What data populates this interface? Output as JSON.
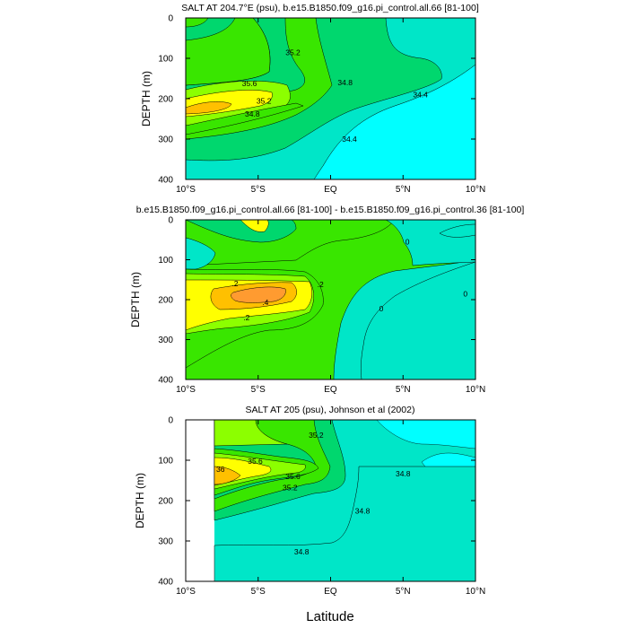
{
  "figure": {
    "xlabel": "Latitude",
    "contour_colors": [
      "#00ffff",
      "#00e6c8",
      "#00d76e",
      "#39e600",
      "#8cff00",
      "#ffff00",
      "#ffc000",
      "#ff9b30"
    ]
  },
  "chart_data": [
    {
      "type": "contour",
      "title": "SALT AT 204.7°E (psu), b.e15.B1850.f09_g16.pi_control.all.66 [81-100]",
      "ylabel": "DEPTH (m)",
      "xlabel": "",
      "xlim": [
        -10,
        10
      ],
      "ylim": [
        400,
        0
      ],
      "x_ticks": [
        -10,
        -5,
        0,
        5,
        10
      ],
      "x_tick_labels": [
        "10°S",
        "5°S",
        "EQ",
        "5°N",
        "10°N"
      ],
      "y_ticks": [
        0,
        100,
        200,
        300,
        400
      ],
      "y_tick_labels": [
        "0",
        "100",
        "200",
        "300",
        "400"
      ],
      "contour_levels": [
        34.4,
        34.6,
        34.8,
        35.0,
        35.2,
        35.4,
        35.6,
        35.8
      ],
      "contour_labels": [
        {
          "text": "35.2",
          "x": -2.6,
          "y": 85
        },
        {
          "text": "35.6",
          "x": -5.6,
          "y": 162
        },
        {
          "text": "34.8",
          "x": 1.0,
          "y": 160
        },
        {
          "text": "34.4",
          "x": 6.2,
          "y": 190
        },
        {
          "text": "35.2",
          "x": -4.6,
          "y": 205
        },
        {
          "text": "34.8",
          "x": -5.4,
          "y": 238
        },
        {
          "text": "34.4",
          "x": 1.3,
          "y": 300
        }
      ]
    },
    {
      "type": "contour",
      "title": "b.e15.B1850.f09_g16.pi_control.all.66 [81-100] - b.e15.B1850.f09_g16.pi_control.36 [81-100]",
      "ylabel": "DEPTH (m)",
      "xlabel": "",
      "xlim": [
        -10,
        10
      ],
      "ylim": [
        400,
        0
      ],
      "x_ticks": [
        -10,
        -5,
        0,
        5,
        10
      ],
      "x_tick_labels": [
        "10°S",
        "5°S",
        "EQ",
        "5°N",
        "10°N"
      ],
      "y_ticks": [
        0,
        100,
        200,
        300,
        400
      ],
      "y_tick_labels": [
        "0",
        "100",
        "200",
        "300",
        "400"
      ],
      "contour_levels": [
        0,
        0.1,
        0.2,
        0.3,
        0.4
      ],
      "contour_labels": [
        {
          "text": "0",
          "x": 5.3,
          "y": 55
        },
        {
          "text": "0",
          "x": 9.3,
          "y": 185
        },
        {
          "text": "0",
          "x": 3.5,
          "y": 222
        },
        {
          "text": ".2",
          "x": -6.6,
          "y": 160
        },
        {
          "text": ".2",
          "x": -0.7,
          "y": 162
        },
        {
          "text": ".4",
          "x": -4.5,
          "y": 207
        },
        {
          "text": ".2",
          "x": -5.8,
          "y": 245
        }
      ]
    },
    {
      "type": "contour",
      "title": "SALT AT 205 (psu), Johnson et al (2002)",
      "ylabel": "DEPTH (m)",
      "xlabel": "Latitude",
      "xlim": [
        -10,
        10
      ],
      "ylim": [
        400,
        0
      ],
      "data_xlim": [
        -8,
        10
      ],
      "x_ticks": [
        -10,
        -5,
        0,
        5,
        10
      ],
      "x_tick_labels": [
        "10°S",
        "5°S",
        "EQ",
        "5°N",
        "10°N"
      ],
      "y_ticks": [
        0,
        100,
        200,
        300,
        400
      ],
      "y_tick_labels": [
        "0",
        "100",
        "200",
        "300",
        "400"
      ],
      "contour_levels": [
        34.8,
        35.0,
        35.2,
        35.4,
        35.6,
        35.8,
        36.0
      ],
      "contour_labels": [
        {
          "text": "35.2",
          "x": -1.0,
          "y": 38
        },
        {
          "text": "35.6",
          "x": -5.2,
          "y": 102
        },
        {
          "text": "36",
          "x": -7.6,
          "y": 122
        },
        {
          "text": "35.6",
          "x": -2.6,
          "y": 140
        },
        {
          "text": "35.2",
          "x": -2.8,
          "y": 168
        },
        {
          "text": "34.8",
          "x": 5.0,
          "y": 133
        },
        {
          "text": "34.8",
          "x": 2.2,
          "y": 225
        },
        {
          "text": "34.8",
          "x": -2.0,
          "y": 327
        }
      ]
    }
  ]
}
